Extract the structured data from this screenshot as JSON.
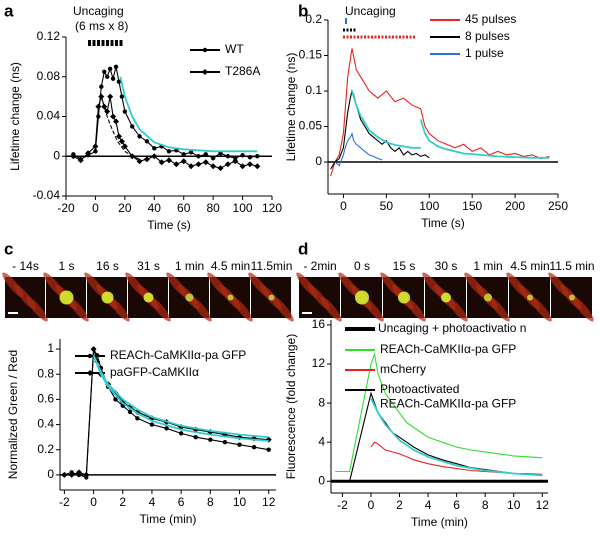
{
  "chart_data": [
    {
      "type": "line",
      "panel_label": "a",
      "xlabel": "Time (s)",
      "ylabel": "Lifetime change (ns)",
      "annotations": [
        "Uncaging",
        "(6 ms x 8)"
      ],
      "xlim": [
        -20,
        120
      ],
      "xticks": [
        -20,
        0,
        20,
        40,
        60,
        80,
        100,
        120
      ],
      "ylim": [
        -0.04,
        0.12
      ],
      "yticks": [
        -0.04,
        0,
        0.04,
        0.08,
        0.12
      ],
      "zero_line": true,
      "legend": "upper right",
      "series": [
        {
          "name": "WT",
          "color": "#000000",
          "marker": "circle",
          "x": [
            -15,
            -10,
            -5,
            0,
            2,
            4,
            6,
            8,
            10,
            12,
            14,
            16,
            18,
            20,
            25,
            30,
            35,
            40,
            45,
            50,
            55,
            60,
            65,
            70,
            75,
            80,
            85,
            90,
            95,
            100,
            105,
            110
          ],
          "values": [
            0.002,
            -0.003,
            0.001,
            0.005,
            0.04,
            0.07,
            0.085,
            0.08,
            0.088,
            0.078,
            0.09,
            0.075,
            0.06,
            0.045,
            0.03,
            0.02,
            0.015,
            0.008,
            0.01,
            0.005,
            0.006,
            0.002,
            0.004,
            0.0,
            0.002,
            -0.002,
            0.003,
            0.0,
            -0.002,
            0.001,
            -0.001,
            0.0
          ]
        },
        {
          "name": "T286A",
          "color": "#000000",
          "marker": "diamond",
          "x": [
            -15,
            -10,
            -5,
            0,
            2,
            4,
            6,
            8,
            10,
            12,
            14,
            16,
            18,
            20,
            25,
            30,
            35,
            40,
            45,
            50,
            55,
            60,
            65,
            70,
            75,
            80,
            85,
            90,
            95,
            100,
            105,
            110
          ],
          "values": [
            0.0,
            -0.004,
            0.003,
            0.01,
            0.05,
            0.06,
            0.05,
            0.045,
            0.06,
            0.04,
            0.035,
            0.02,
            0.015,
            0.01,
            0.0,
            -0.005,
            -0.003,
            0.0,
            -0.006,
            -0.004,
            -0.008,
            -0.005,
            -0.01,
            -0.008,
            -0.006,
            -0.01,
            -0.012,
            -0.008,
            -0.005,
            -0.01,
            -0.008,
            -0.01
          ]
        },
        {
          "color": "#33cccc",
          "marker": "none",
          "x": [
            17,
            20,
            25,
            30,
            40,
            50,
            60,
            70,
            80,
            90,
            100,
            110
          ],
          "values": [
            0.08,
            0.06,
            0.04,
            0.027,
            0.014,
            0.009,
            0.007,
            0.006,
            0.005,
            0.005,
            0.005,
            0.005
          ]
        },
        {
          "color": "#000000",
          "marker": "none",
          "dash": true,
          "x": [
            4,
            6,
            8,
            10,
            12,
            15,
            20,
            25,
            30
          ],
          "values": [
            0.06,
            0.05,
            0.04,
            0.032,
            0.025,
            0.015,
            0.005,
            0.0,
            -0.003
          ]
        }
      ]
    },
    {
      "type": "line",
      "panel_label": "b",
      "xlabel": "Time (s)",
      "ylabel": "Lifetime change (ns)",
      "annotations": [
        "Uncaging"
      ],
      "xlim": [
        -18,
        250
      ],
      "xticks": [
        0,
        50,
        100,
        150,
        200,
        250
      ],
      "ylim": [
        -0.045,
        0.2
      ],
      "yticks": [
        0,
        0.05,
        0.1,
        0.15,
        0.2
      ],
      "zero_line": true,
      "legend": "upper right",
      "series": [
        {
          "name": "45 pulses",
          "color": "#e8241c",
          "marker": "none",
          "x": [
            -15,
            -10,
            -5,
            0,
            5,
            10,
            15,
            20,
            25,
            30,
            40,
            50,
            60,
            70,
            80,
            90,
            95,
            100,
            110,
            120,
            130,
            140,
            150,
            160,
            170,
            180,
            190,
            200,
            210,
            220,
            230,
            240
          ],
          "values": [
            -0.02,
            0.0,
            0.01,
            0.04,
            0.12,
            0.16,
            0.13,
            0.12,
            0.11,
            0.1,
            0.09,
            0.1,
            0.085,
            0.09,
            0.08,
            0.075,
            0.05,
            0.04,
            0.03,
            0.025,
            0.02,
            0.025,
            0.015,
            0.02,
            0.01,
            0.015,
            0.01,
            0.012,
            0.008,
            0.01,
            0.005,
            0.008
          ]
        },
        {
          "name": "8 pulses",
          "color": "#000000",
          "marker": "none",
          "x": [
            -15,
            -10,
            -5,
            0,
            5,
            8,
            10,
            12,
            15,
            20,
            25,
            30,
            35,
            40,
            45,
            50,
            55,
            60,
            65,
            70,
            75,
            80,
            85,
            90,
            95,
            100
          ],
          "values": [
            -0.01,
            0.0,
            0.005,
            0.02,
            0.07,
            0.09,
            0.1,
            0.095,
            0.08,
            0.06,
            0.05,
            0.04,
            0.035,
            0.03,
            0.025,
            0.03,
            0.02,
            0.015,
            0.02,
            0.01,
            0.015,
            0.01,
            0.012,
            0.008,
            0.01,
            0.006
          ]
        },
        {
          "name": "1 pulse",
          "color": "#2a6fdb",
          "marker": "none",
          "x": [
            -10,
            -5,
            0,
            2,
            5,
            8,
            10,
            12,
            15,
            20,
            25,
            30,
            35,
            40,
            45
          ],
          "values": [
            0.0,
            -0.005,
            0.01,
            0.02,
            0.03,
            0.035,
            0.04,
            0.03,
            0.025,
            0.02,
            0.015,
            0.01,
            0.008,
            0.005,
            0.003
          ]
        },
        {
          "color": "#33cccc",
          "marker": "none",
          "x": [
            10,
            15,
            20,
            30,
            40,
            50,
            60,
            70,
            80,
            90
          ],
          "values": [
            0.1,
            0.08,
            0.065,
            0.045,
            0.035,
            0.028,
            0.024,
            0.022,
            0.02,
            0.02
          ]
        },
        {
          "color": "#33cccc",
          "marker": "none",
          "x": [
            90,
            95,
            100,
            110,
            120,
            140,
            160,
            180,
            200,
            220,
            240
          ],
          "values": [
            0.06,
            0.04,
            0.03,
            0.022,
            0.018,
            0.012,
            0.01,
            0.008,
            0.007,
            0.006,
            0.006
          ]
        }
      ]
    },
    {
      "type": "line",
      "panel_label": "c",
      "xlabel": "Time (min)",
      "ylabel": "Normalized  Green / Red",
      "xlim": [
        -2.3,
        12.5
      ],
      "xticks": [
        -2,
        0,
        2,
        4,
        6,
        8,
        10,
        12
      ],
      "ylim": [
        -0.12,
        1.08
      ],
      "yticks": [
        0,
        0.2,
        0.4,
        0.6,
        0.8,
        1
      ],
      "zero_line": true,
      "legend": "upper left",
      "series": [
        {
          "name": "REACh-CaMKIIα-pa GFP",
          "color": "#000000",
          "marker": "circle",
          "x": [
            -2,
            -1.5,
            -1,
            -0.5,
            0,
            0.25,
            0.5,
            1,
            1.5,
            2,
            2.5,
            3,
            4,
            5,
            6,
            7,
            8,
            9,
            10,
            11,
            12
          ],
          "values": [
            0,
            0.02,
            0,
            -0.02,
            1,
            0.95,
            0.85,
            0.7,
            0.6,
            0.55,
            0.5,
            0.45,
            0.4,
            0.37,
            0.33,
            0.3,
            0.28,
            0.26,
            0.24,
            0.22,
            0.2
          ]
        },
        {
          "name": "paGFP-CaMKIIα",
          "color": "#000000",
          "marker": "diamond",
          "x": [
            -2,
            -1.5,
            -1,
            -0.5,
            0,
            0.25,
            0.5,
            1,
            1.5,
            2,
            2.5,
            3,
            4,
            5,
            6,
            7,
            8,
            9,
            10,
            11,
            12
          ],
          "values": [
            0,
            0,
            0.02,
            0,
            1,
            0.9,
            0.8,
            0.72,
            0.65,
            0.58,
            0.54,
            0.5,
            0.45,
            0.42,
            0.38,
            0.36,
            0.34,
            0.32,
            0.3,
            0.29,
            0.28
          ]
        },
        {
          "color": "#33cccc",
          "marker": "none",
          "x": [
            0,
            0.5,
            1,
            2,
            3,
            4,
            6,
            8,
            10,
            12
          ],
          "values": [
            0.95,
            0.8,
            0.7,
            0.57,
            0.49,
            0.43,
            0.36,
            0.32,
            0.29,
            0.27
          ]
        },
        {
          "color": "#33cccc",
          "marker": "none",
          "x": [
            0,
            0.5,
            1,
            2,
            3,
            4,
            6,
            8,
            10,
            12
          ],
          "values": [
            0.95,
            0.82,
            0.72,
            0.6,
            0.52,
            0.46,
            0.39,
            0.35,
            0.32,
            0.3
          ]
        }
      ]
    },
    {
      "type": "line",
      "panel_label": "d",
      "xlabel": "Time (min)",
      "ylabel": "Fluorescence  (fold change)",
      "annotations": [
        "Uncaging  + photoactivatio n"
      ],
      "xlim": [
        -2.8,
        12.4
      ],
      "xticks": [
        -2,
        0,
        2,
        4,
        6,
        8,
        10,
        12
      ],
      "ylim": [
        -1.2,
        16.5
      ],
      "yticks": [
        0,
        4,
        8,
        12,
        16
      ],
      "zero_line": true,
      "legend": "upper left",
      "series": [
        {
          "name": "REACh-CaMKIIα-pa GFP",
          "color": "#33dd33",
          "marker": "none",
          "x": [
            -2.5,
            -2,
            -1.5,
            0,
            0.25,
            0.5,
            1,
            1.5,
            2,
            2.5,
            3,
            4,
            5,
            6,
            7,
            8,
            9,
            10,
            11,
            12
          ],
          "values": [
            1,
            1,
            1,
            12,
            13,
            11,
            9,
            8,
            7,
            6,
            5.5,
            4.5,
            4,
            3.5,
            3.2,
            3,
            2.8,
            2.6,
            2.5,
            2.4
          ]
        },
        {
          "name": "mCherry",
          "color": "#e8241c",
          "marker": "none",
          "x": [
            0,
            0.25,
            0.5,
            1,
            1.5,
            2,
            2.5,
            3,
            4,
            5,
            6,
            7,
            8,
            9,
            10,
            11,
            12
          ],
          "values": [
            3.5,
            4,
            3.8,
            3.2,
            3,
            2.8,
            2.5,
            2.2,
            1.8,
            1.5,
            1.3,
            1.1,
            1,
            0.9,
            0.8,
            0.8,
            0.7
          ]
        },
        {
          "name": "Photoactivated\nREACh-CaMKIIα-pa GFP",
          "color": "#000000",
          "marker": "none",
          "x": [
            -2.5,
            -2,
            -1.5,
            0,
            0.25,
            0.5,
            1,
            1.5,
            2,
            2.5,
            3,
            4,
            5,
            6,
            7,
            8,
            9,
            10,
            11,
            12
          ],
          "values": [
            0,
            0,
            0,
            9,
            8,
            7,
            6,
            5,
            4.5,
            4,
            3.5,
            2.7,
            2.2,
            1.8,
            1.4,
            1.2,
            1,
            0.8,
            0.7,
            0.6
          ]
        },
        {
          "color": "#33cccc",
          "marker": "none",
          "x": [
            0,
            0.5,
            1,
            2,
            3,
            4,
            6,
            8,
            10,
            12
          ],
          "values": [
            8.5,
            7,
            5.8,
            4.2,
            3.2,
            2.5,
            1.6,
            1.1,
            0.8,
            0.6
          ]
        }
      ]
    }
  ],
  "images": [
    {
      "labels": [
        "- 14s",
        "1 s",
        "16 s",
        "31 s",
        "1 min",
        "4.5 min",
        "11.5min"
      ]
    },
    {
      "labels": [
        "- 2min",
        "0 s",
        "15 s",
        "30 s",
        "1 min",
        "4.5 min",
        "11.5 min"
      ]
    }
  ]
}
